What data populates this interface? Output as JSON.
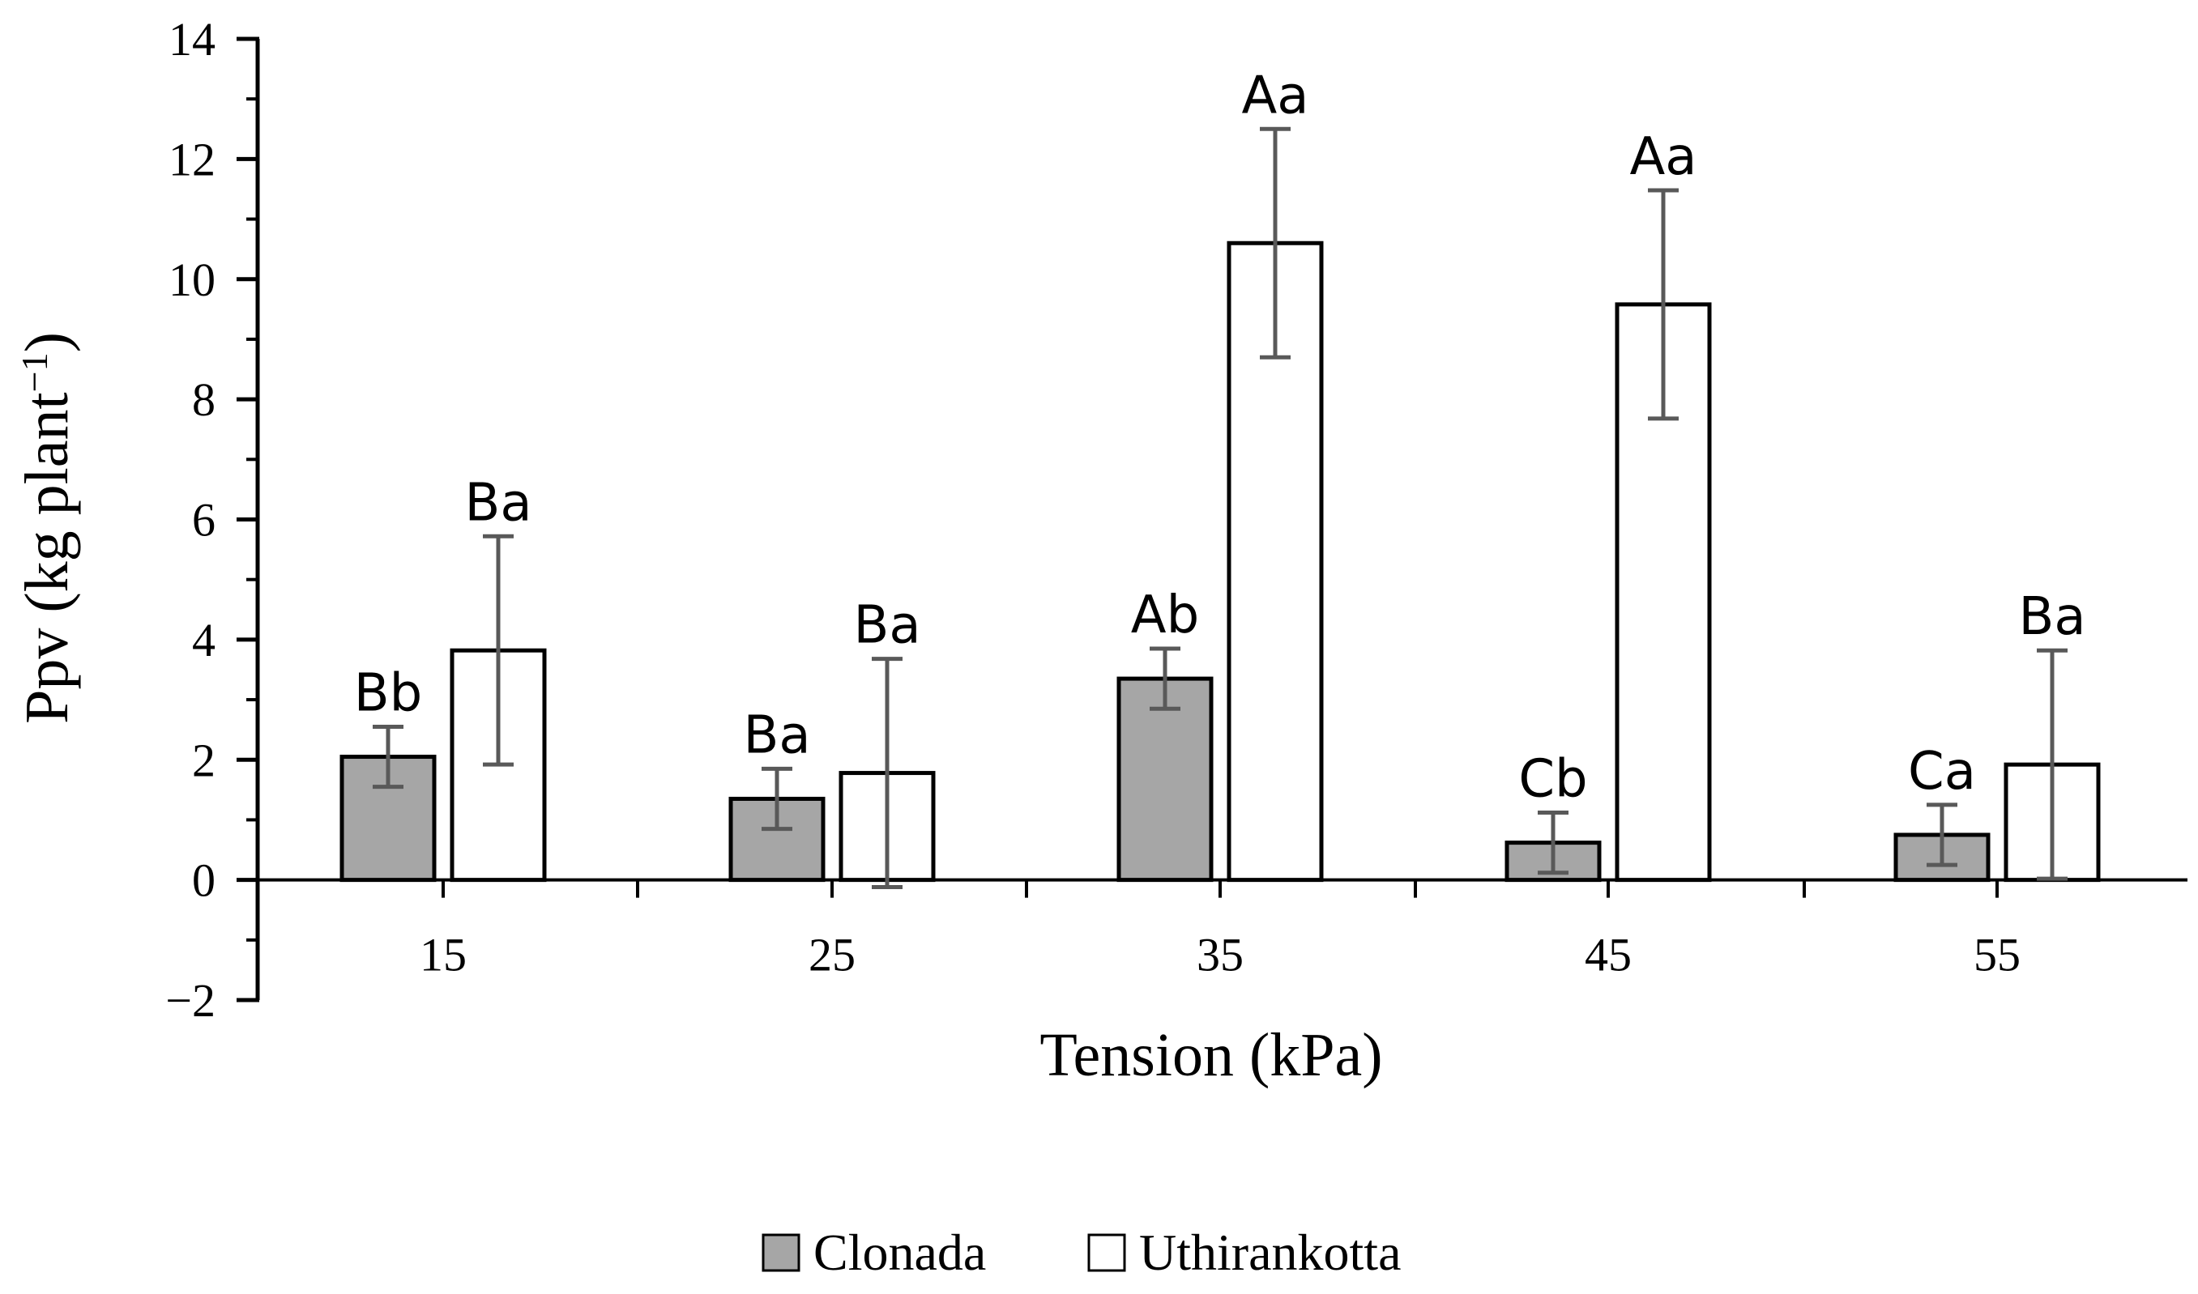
{
  "chart_data": {
    "type": "bar",
    "title": "",
    "xlabel": "Tension (kPa)",
    "ylabel": "Ppv (kg plant",
    "ylabel_superscript": "−1",
    "ylabel_close": ")",
    "categories": [
      "15",
      "25",
      "35",
      "45",
      "55"
    ],
    "ylim": [
      -2,
      14
    ],
    "yticks": [
      -2,
      0,
      2,
      4,
      6,
      8,
      10,
      12,
      14
    ],
    "ytick_labels": [
      "−2",
      "0",
      "2",
      "4",
      "6",
      "8",
      "10",
      "12",
      "14"
    ],
    "legend_position": "bottom",
    "series": [
      {
        "name": "Clonada",
        "color": "#a6a6a6",
        "values": [
          2.05,
          1.35,
          3.35,
          0.62,
          0.75
        ],
        "errors": [
          0.5,
          0.5,
          0.5,
          0.5,
          0.5
        ],
        "labels": [
          "Bb",
          "Ba",
          "Ab",
          "Cb",
          "Ca"
        ]
      },
      {
        "name": "Uthirankotta",
        "color": "#ffffff",
        "values": [
          3.82,
          1.78,
          10.6,
          9.58,
          1.92
        ],
        "errors": [
          1.9,
          1.9,
          1.9,
          1.9,
          1.9
        ],
        "labels": [
          "Ba",
          "Ba",
          "Aa",
          "Aa",
          "Ba"
        ]
      }
    ]
  }
}
